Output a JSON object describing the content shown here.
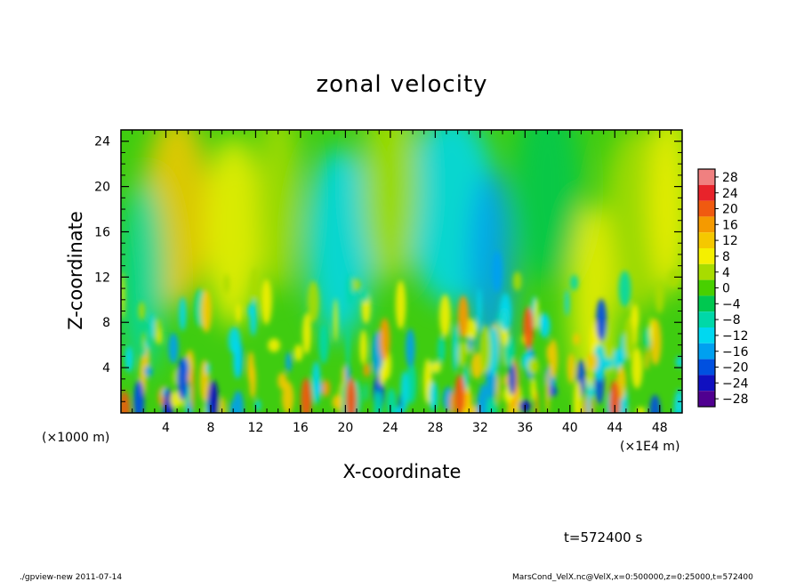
{
  "chart_data": {
    "type": "heatmap",
    "title": "zonal velocity",
    "xlabel": "X-coordinate",
    "ylabel": "Z-coordinate",
    "x_unit_label": "(×1E4 m)",
    "y_unit_label": "(×1000 m)",
    "xlim": [
      0,
      50
    ],
    "ylim": [
      0,
      25
    ],
    "x_ticks": [
      4,
      8,
      12,
      16,
      20,
      24,
      28,
      32,
      36,
      40,
      44,
      48
    ],
    "y_ticks": [
      4,
      8,
      12,
      16,
      20,
      24
    ],
    "colorbar": {
      "levels": [
        28,
        24,
        20,
        16,
        12,
        8,
        4,
        0,
        -4,
        -8,
        -12,
        -16,
        -20,
        -24,
        -28
      ],
      "colors": [
        "#f08080",
        "#e8232b",
        "#f05a10",
        "#f59a00",
        "#f5c800",
        "#f5f000",
        "#a8dc00",
        "#48d000",
        "#00c850",
        "#00d8a8",
        "#00d8f0",
        "#00a0f0",
        "#0050e0",
        "#1010c0",
        "#500090"
      ]
    },
    "time_label": "t=572400 s"
  },
  "footer": {
    "left": "./gpview-new   2011-07-14",
    "right": "MarsCond_VelX.nc@VelX,x=0:500000,z=0:25000,t=572400"
  }
}
